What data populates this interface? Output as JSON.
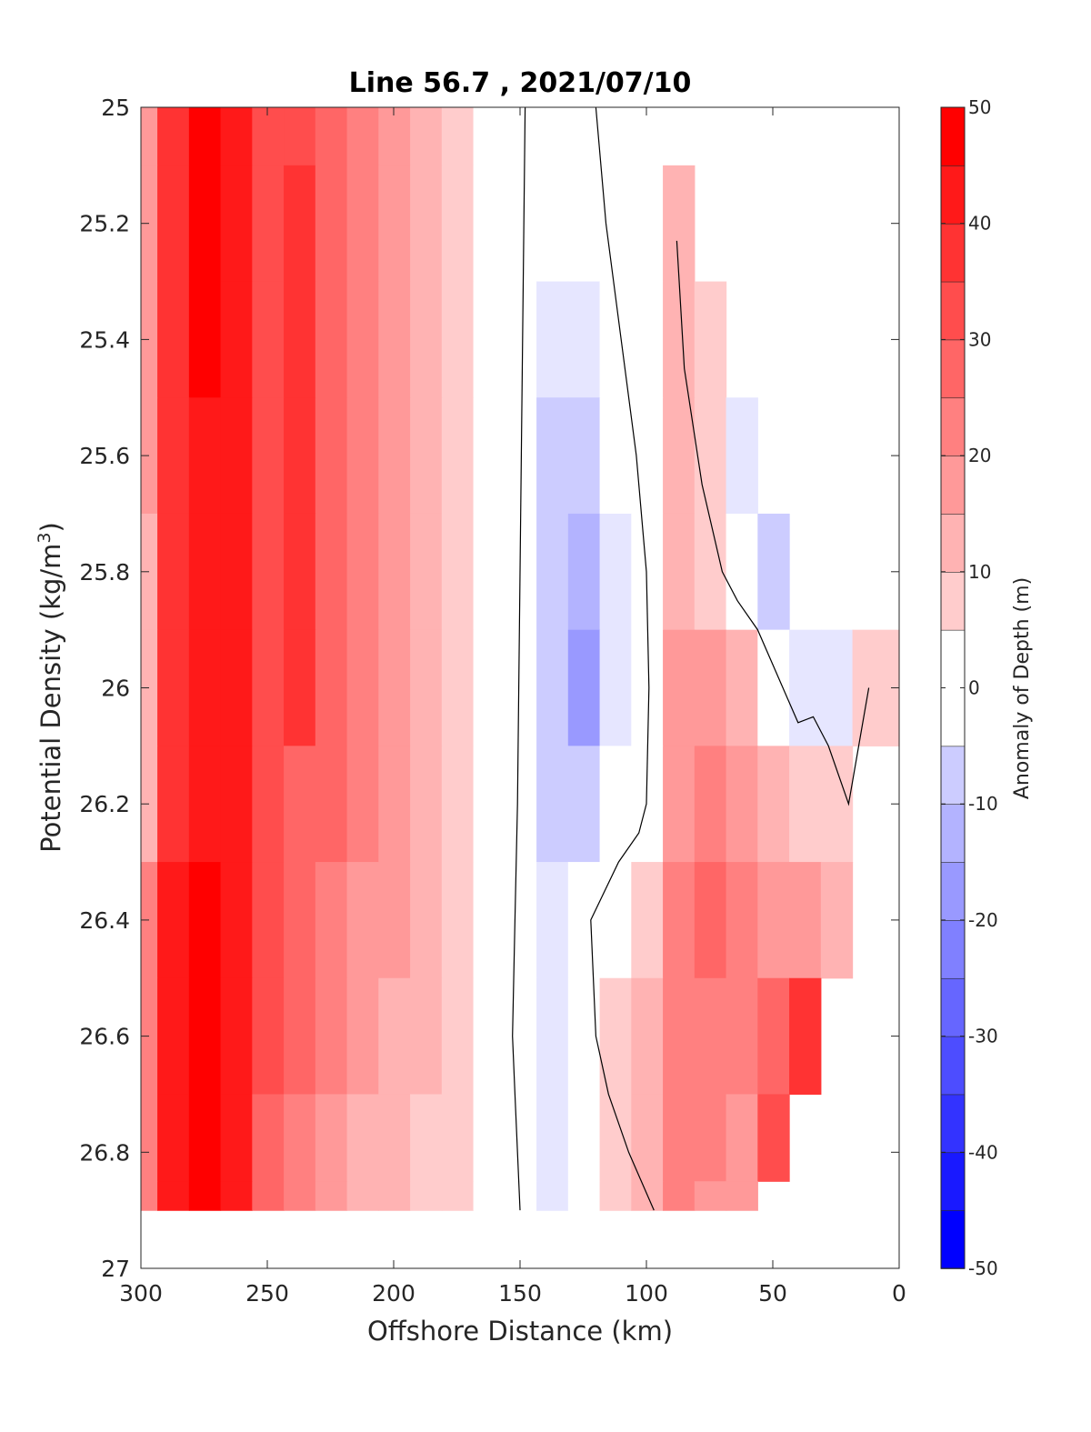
{
  "chart_data": {
    "type": "heatmap",
    "title": "Line 56.7 , 2021/07/10",
    "xlabel": "Offshore Distance (km)",
    "ylabel_text": "Potential Density (kg/m",
    "ylabel_sup": "3",
    "ylabel_close": ")",
    "xlim": [
      300,
      0
    ],
    "ylim": [
      25,
      27
    ],
    "x_ticks": [
      300,
      250,
      200,
      150,
      100,
      50,
      0
    ],
    "x_tick_labels": [
      "300",
      "250",
      "200",
      "150",
      "100",
      "50",
      "0"
    ],
    "y_ticks": [
      25,
      25.2,
      25.4,
      25.6,
      25.8,
      26,
      26.2,
      26.4,
      26.6,
      26.8,
      27
    ],
    "y_tick_labels": [
      "25",
      "25.2",
      "25.4",
      "25.6",
      "25.8",
      "26",
      "26.2",
      "26.4",
      "26.6",
      "26.8",
      "27"
    ],
    "colorbar": {
      "label": "Anomaly of Depth (m)",
      "range": [
        -50,
        50
      ],
      "ticks": [
        50,
        40,
        30,
        20,
        10,
        0,
        -10,
        -20,
        -30,
        -40,
        -50
      ],
      "tick_labels": [
        "50",
        "40",
        "30",
        "20",
        "10",
        "0",
        "-10",
        "-20",
        "-30",
        "-40",
        "-50"
      ],
      "levels": [
        -50,
        -45,
        -40,
        -35,
        -30,
        -25,
        -20,
        -15,
        -10,
        -5,
        5,
        10,
        15,
        20,
        25,
        30,
        35,
        40,
        45,
        50
      ],
      "colormap": "blue-white-red"
    },
    "x": [
      300,
      287,
      275,
      262,
      250,
      237,
      225,
      212,
      200,
      187,
      175,
      162,
      150,
      137,
      125,
      112,
      100,
      87,
      75,
      62,
      50,
      37,
      25,
      12
    ],
    "y": [
      25.0,
      25.2,
      25.4,
      25.6,
      25.8,
      26.0,
      26.2,
      26.4,
      26.6,
      26.8,
      26.9
    ],
    "z": [
      [
        15,
        38,
        45,
        40,
        30,
        30,
        25,
        20,
        15,
        12,
        5,
        0,
        0,
        null,
        null,
        null,
        null,
        null,
        null,
        null,
        null,
        null,
        null,
        null
      ],
      [
        15,
        38,
        45,
        40,
        30,
        35,
        25,
        20,
        15,
        12,
        5,
        0,
        0,
        0,
        0,
        0,
        0,
        10,
        null,
        null,
        null,
        null,
        null,
        null
      ],
      [
        15,
        38,
        45,
        40,
        30,
        35,
        25,
        20,
        15,
        12,
        5,
        0,
        0,
        -5,
        -5,
        0,
        0,
        10,
        5,
        null,
        null,
        null,
        null,
        null
      ],
      [
        15,
        38,
        42,
        40,
        30,
        35,
        25,
        20,
        15,
        10,
        5,
        0,
        0,
        -10,
        -10,
        0,
        0,
        10,
        5,
        -5,
        null,
        null,
        null,
        null
      ],
      [
        10,
        35,
        42,
        40,
        30,
        35,
        25,
        20,
        15,
        10,
        5,
        0,
        0,
        -10,
        -15,
        -5,
        0,
        10,
        5,
        0,
        -10,
        null,
        null,
        null
      ],
      [
        10,
        35,
        42,
        40,
        30,
        35,
        25,
        20,
        15,
        10,
        5,
        0,
        0,
        -10,
        -20,
        -5,
        0,
        15,
        15,
        10,
        0,
        -5,
        -5,
        5
      ],
      [
        10,
        35,
        42,
        40,
        30,
        25,
        25,
        20,
        15,
        10,
        5,
        0,
        0,
        -10,
        -10,
        0,
        0,
        15,
        20,
        15,
        10,
        5,
        5,
        null
      ],
      [
        20,
        40,
        45,
        40,
        30,
        25,
        20,
        15,
        15,
        10,
        5,
        0,
        0,
        -5,
        0,
        0,
        5,
        20,
        25,
        20,
        15,
        15,
        10,
        null
      ],
      [
        20,
        40,
        45,
        40,
        30,
        25,
        20,
        15,
        10,
        10,
        5,
        0,
        0,
        -5,
        0,
        5,
        10,
        20,
        20,
        20,
        25,
        35,
        null,
        null
      ],
      [
        20,
        40,
        45,
        40,
        25,
        20,
        15,
        10,
        10,
        5,
        5,
        0,
        0,
        -5,
        0,
        5,
        10,
        20,
        20,
        15,
        30,
        null,
        null,
        null
      ],
      [
        20,
        40,
        45,
        40,
        25,
        20,
        15,
        10,
        10,
        5,
        5,
        0,
        0,
        -5,
        0,
        5,
        10,
        20,
        15,
        15,
        null,
        null,
        null,
        null
      ]
    ],
    "zero_contours": [
      {
        "x": [
          148,
          149,
          150,
          151,
          152,
          153,
          152,
          151,
          150
        ],
        "y": [
          25.0,
          25.4,
          25.8,
          26.2,
          26.4,
          26.6,
          26.7,
          26.8,
          26.9
        ]
      },
      {
        "x": [
          120,
          116,
          110,
          104,
          100,
          99,
          100,
          103,
          111,
          122,
          120,
          115,
          107,
          97
        ],
        "y": [
          25.0,
          25.2,
          25.4,
          25.6,
          25.8,
          26.0,
          26.2,
          26.25,
          26.3,
          26.4,
          26.6,
          26.7,
          26.8,
          26.9
        ]
      },
      {
        "x": [
          88,
          85,
          78,
          70,
          64,
          56,
          46,
          40,
          34,
          28,
          20,
          16,
          12
        ],
        "y": [
          25.23,
          25.45,
          25.65,
          25.8,
          25.85,
          25.9,
          26.0,
          26.06,
          26.05,
          26.1,
          26.2,
          26.1,
          26.0
        ]
      }
    ]
  }
}
